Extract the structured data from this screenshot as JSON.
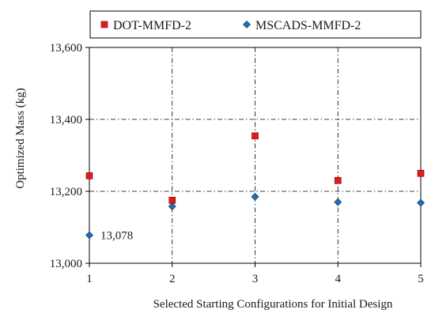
{
  "chart_data": {
    "type": "scatter",
    "xlabel": "Selected Starting Configurations for Initial Design",
    "ylabel": "Optimized Mass (kg)",
    "xlim": [
      1,
      5
    ],
    "ylim": [
      13000,
      13600
    ],
    "x_ticks": [
      "1",
      "2",
      "3",
      "4",
      "5"
    ],
    "y_ticks": [
      "13,000",
      "13,200",
      "13,400",
      "13,600"
    ],
    "grid": "dash-dot",
    "legend_position": "top",
    "series": [
      {
        "name": "DOT-MMFD-2",
        "marker": "square",
        "color": "#e31a1c",
        "x": [
          1,
          2,
          3,
          4,
          5
        ],
        "y": [
          13243,
          13175,
          13354,
          13230,
          13250
        ]
      },
      {
        "name": "MSCADS-MMFD-2",
        "marker": "diamond",
        "color": "#1f6fb4",
        "x": [
          1,
          2,
          3,
          4,
          5
        ],
        "y": [
          13078,
          13158,
          13185,
          13170,
          13168
        ]
      }
    ],
    "annotations": [
      {
        "text": "13,078",
        "x": 1,
        "y": 13078
      }
    ]
  }
}
